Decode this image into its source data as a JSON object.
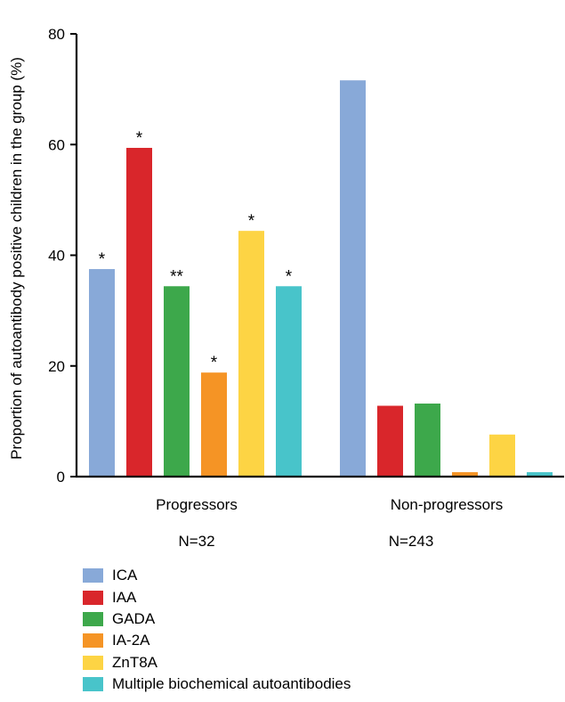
{
  "chart_data": {
    "type": "bar",
    "title": "",
    "ylabel": "Proportion of autoantibody positive children in the group (%)",
    "xlabel": "",
    "ylim": [
      0,
      80
    ],
    "yticks": [
      "0",
      "20",
      "40",
      "60",
      "80"
    ],
    "grid": false,
    "legend_position": "bottom-left",
    "categories": [
      "Progressors",
      "Non-progressors"
    ],
    "group_counts": [
      "N=32",
      "N=243"
    ],
    "series": [
      {
        "name": "ICA",
        "color": "#88a9d8",
        "values": [
          37.5,
          71.6
        ],
        "significance": [
          "*",
          ""
        ]
      },
      {
        "name": "IAA",
        "color": "#d9262b",
        "values": [
          59.4,
          12.8
        ],
        "significance": [
          "*",
          ""
        ]
      },
      {
        "name": "GADA",
        "color": "#3da84b",
        "values": [
          34.4,
          13.2
        ],
        "significance": [
          "**",
          ""
        ]
      },
      {
        "name": "IA-2A",
        "color": "#f59425",
        "values": [
          18.8,
          0.8
        ],
        "significance": [
          "*",
          ""
        ]
      },
      {
        "name": "ZnT8A",
        "color": "#fdd444",
        "values": [
          44.4,
          7.6
        ],
        "significance": [
          "*",
          ""
        ]
      },
      {
        "name": "Multiple biochemical autoantibodies",
        "color": "#48c4ca",
        "values": [
          34.4,
          0.8
        ],
        "significance": [
          "*",
          ""
        ]
      }
    ]
  }
}
